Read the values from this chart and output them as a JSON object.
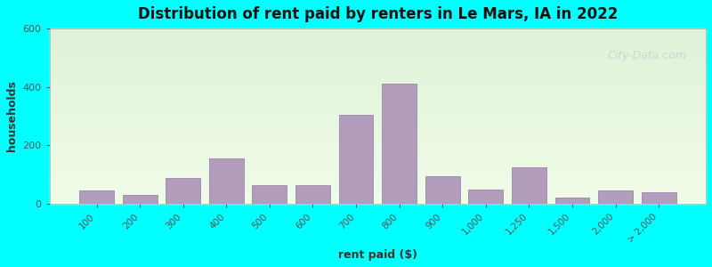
{
  "title": "Distribution of rent paid by renters in Le Mars, IA in 2022",
  "xlabel": "rent paid ($)",
  "ylabel": "households",
  "bar_color": "#b39dbd",
  "bar_edge_color": "#9575a6",
  "background_top": "#dff2d8",
  "background_bottom": "#f0fce8",
  "outer_bg": "#00ffff",
  "ylim": [
    0,
    600
  ],
  "yticks": [
    0,
    200,
    400,
    600
  ],
  "categories": [
    "100",
    "200",
    "300",
    "400",
    "500",
    "600",
    "700",
    "800",
    "900",
    "1,000",
    "1,250",
    "1,500",
    "2,000",
    "> 2,000"
  ],
  "values": [
    45,
    30,
    90,
    155,
    65,
    65,
    305,
    410,
    95,
    50,
    125,
    20,
    45,
    40
  ],
  "watermark": "City-Data.com"
}
